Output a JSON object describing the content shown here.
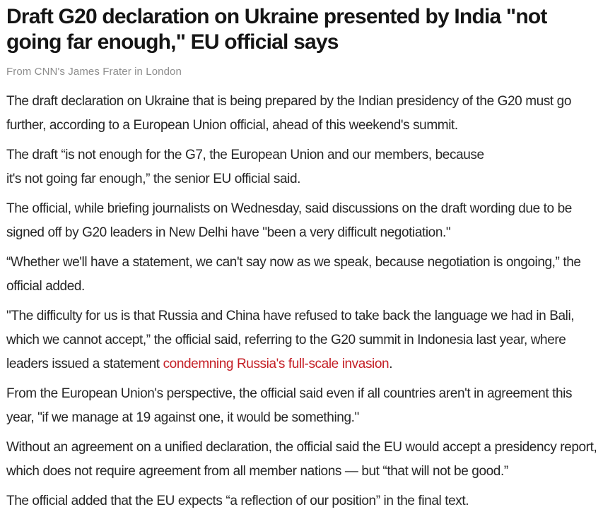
{
  "article": {
    "headline": "Draft G20 declaration on Ukraine presented by India \"not going far enough,\" EU official says",
    "byline": "From CNN's James Frater in London",
    "link_color": "#c41e25",
    "paragraphs": [
      {
        "text": "The draft declaration on Ukraine that is being prepared by the Indian presidency of the G20 must go further, according to a European Union official, ahead of this weekend's summit."
      },
      {
        "text": "The draft “is not enough for the G7, the European Union and our members, because\nit's not going far enough,” the senior EU official said."
      },
      {
        "text": "The official, while briefing journalists on Wednesday, said discussions on the draft wording due to be signed off by G20 leaders in New Delhi have \"been a very difficult negotiation.\""
      },
      {
        "text": "“Whether we'll have a statement, we can't say now as we speak, because negotiation is ongoing,” the official added."
      },
      {
        "before": "\"The difficulty for us is that Russia and China have refused to take back the language we had in Bali, which we cannot accept,” the official said, referring to the G20 summit in Indonesia last year, where leaders issued a statement ",
        "link_text": "condemning Russia's full-scale invasion",
        "after": "."
      },
      {
        "text": "From the European Union's perspective, the official said even if all countries aren't in agreement this year, \"if we manage at 19 against one, it would be something.\""
      },
      {
        "text": "Without an agreement on a unified declaration, the official said the EU would accept a presidency report, which does not require agreement from all member nations — but “that will not be good.”"
      },
      {
        "text": "The official added that the EU expects “a reflection of our position” in the final text."
      }
    ]
  }
}
